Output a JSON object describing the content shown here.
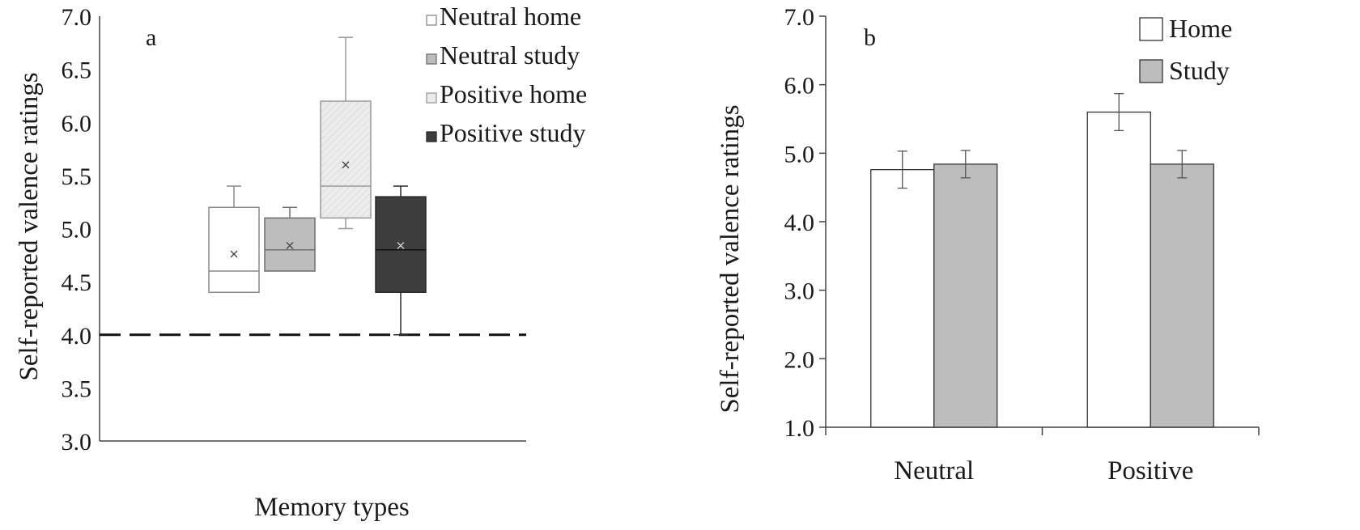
{
  "chart_data": [
    {
      "type": "box",
      "panel_label": "a",
      "xlabel": "Memory types",
      "ylabel": "Self-reported valence ratings",
      "ylim": [
        3.0,
        7.0
      ],
      "yticks": [
        "3.0",
        "3.5",
        "4.0",
        "4.5",
        "5.0",
        "5.5",
        "6.0",
        "6.5",
        "7.0"
      ],
      "reference_line": 4.0,
      "legend_position": "top-right",
      "series": [
        {
          "name": "Neutral home",
          "min": 4.4,
          "q1": 4.4,
          "median": 4.6,
          "q3": 5.2,
          "max": 5.4,
          "mean": 4.76,
          "color": "#ffffff",
          "stroke": "#8a8a8a"
        },
        {
          "name": "Neutral study",
          "min": 4.6,
          "q1": 4.6,
          "median": 4.8,
          "q3": 5.1,
          "max": 5.2,
          "mean": 4.84,
          "color": "#bdbdbd",
          "stroke": "#6f6f6f"
        },
        {
          "name": "Positive home",
          "min": 5.0,
          "q1": 5.1,
          "median": 5.4,
          "q3": 6.2,
          "max": 6.8,
          "mean": 5.6,
          "color": "#ececec",
          "stroke": "#9a9a9a"
        },
        {
          "name": "Positive study",
          "min": 4.0,
          "q1": 4.4,
          "median": 4.8,
          "q3": 5.3,
          "max": 5.4,
          "mean": 4.84,
          "color": "#3d3d3d",
          "stroke": "#2a2a2a"
        }
      ]
    },
    {
      "type": "bar",
      "panel_label": "b",
      "ylabel": "Self-reported valence ratings",
      "ylim": [
        1.0,
        7.0
      ],
      "yticks": [
        "1.0",
        "2.0",
        "3.0",
        "4.0",
        "5.0",
        "6.0",
        "7.0"
      ],
      "categories": [
        "Neutral",
        "Positive"
      ],
      "legend_position": "top-right",
      "series": [
        {
          "name": "Home",
          "values": [
            4.76,
            5.6
          ],
          "errors": [
            0.27,
            0.27
          ],
          "color": "#ffffff"
        },
        {
          "name": "Study",
          "values": [
            4.84,
            4.84
          ],
          "errors": [
            0.2,
            0.2
          ],
          "color": "#bdbdbd"
        }
      ]
    }
  ]
}
